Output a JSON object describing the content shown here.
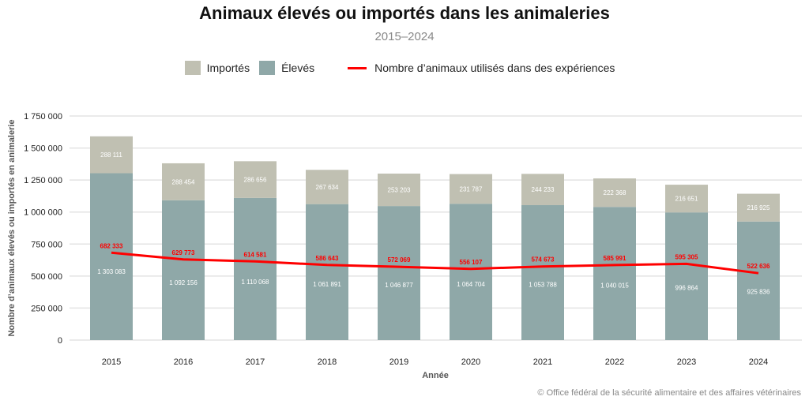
{
  "chart_data": {
    "type": "bar",
    "title": "Animaux élevés ou importés dans les animaleries",
    "subtitle": "2015–2024",
    "xlabel": "Année",
    "ylabel": "Nombre d’animaux élevés ou importés en animalerie",
    "ylim": [
      0,
      1750000
    ],
    "yticks": [
      "0",
      "250 000",
      "500 000",
      "750 000",
      "1 000 000",
      "1 250 000",
      "1 500 000",
      "1 750 000"
    ],
    "ytick_values": [
      0,
      250000,
      500000,
      750000,
      1000000,
      1250000,
      1500000,
      1750000
    ],
    "grid": true,
    "legend_position": "top",
    "categories": [
      "2015",
      "2016",
      "2017",
      "2018",
      "2019",
      "2020",
      "2021",
      "2022",
      "2023",
      "2024"
    ],
    "series": [
      {
        "name": "Élevés",
        "type": "bar",
        "stacked": true,
        "color": "#8fa8a8",
        "values": [
          1303083,
          1092156,
          1110068,
          1061891,
          1046877,
          1064704,
          1053788,
          1040015,
          996864,
          925836
        ],
        "labels": [
          "1 303 083",
          "1 092 156",
          "1 110 068",
          "1 061 891",
          "1 046 877",
          "1 064 704",
          "1 053 788",
          "1 040 015",
          "996 864",
          "925 836"
        ]
      },
      {
        "name": "Importés",
        "type": "bar",
        "stacked": true,
        "color": "#c0c0b2",
        "values": [
          288111,
          288454,
          286656,
          267634,
          253203,
          231787,
          244233,
          222368,
          216651,
          216925
        ],
        "labels": [
          "288 111",
          "288 454",
          "286 656",
          "267 634",
          "253 203",
          "231 787",
          "244 233",
          "222 368",
          "216 651",
          "216 925"
        ]
      },
      {
        "name": "Nombre d’animaux utilisés dans des expériences",
        "type": "line",
        "color": "#ff0000",
        "values": [
          682333,
          629773,
          614581,
          586643,
          572069,
          556107,
          574673,
          585991,
          595305,
          522636
        ],
        "labels": [
          "682 333",
          "629 773",
          "614 581",
          "586 643",
          "572 069",
          "556 107",
          "574 673",
          "585 991",
          "595 305",
          "522 636"
        ]
      }
    ]
  },
  "footer": "© Office fédéral de la sécurité alimentaire et des affaires vétérinaires"
}
